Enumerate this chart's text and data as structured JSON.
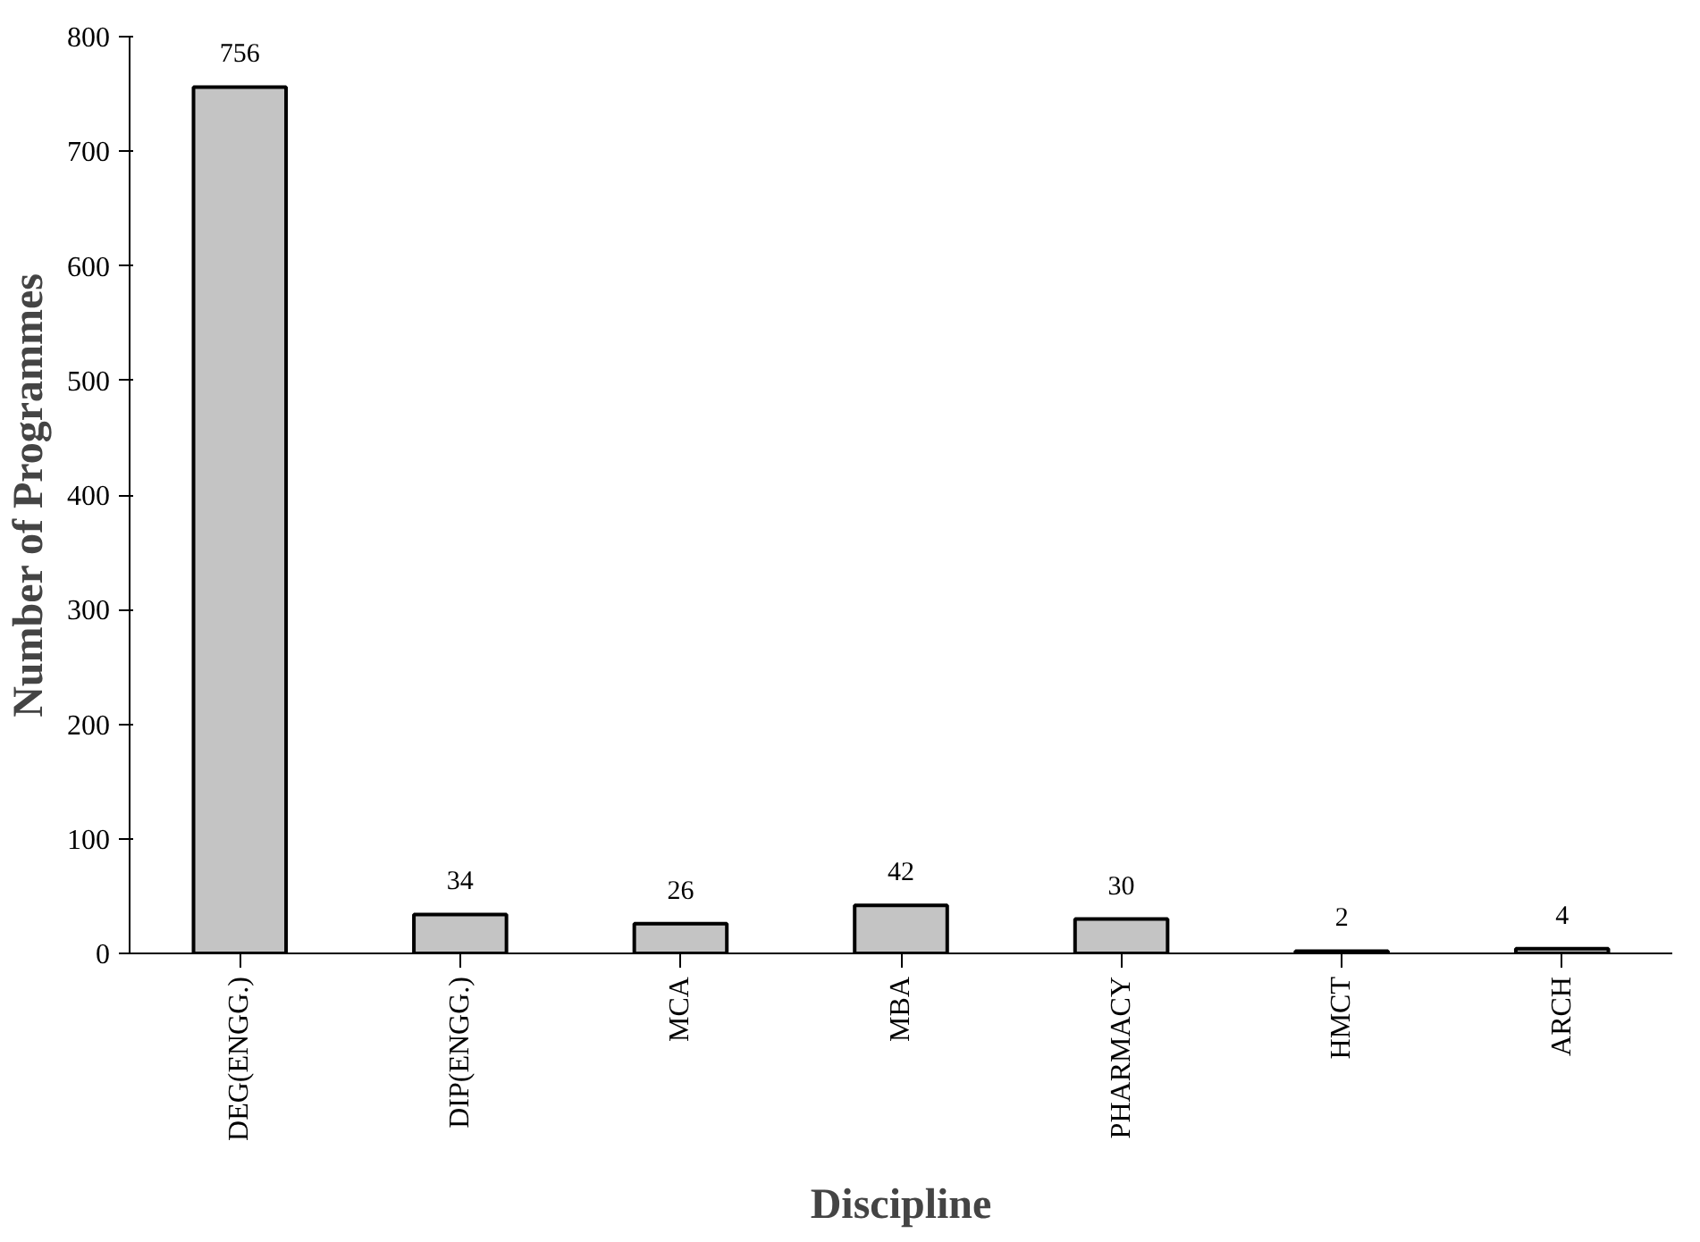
{
  "chart_data": {
    "type": "bar",
    "xlabel": "Discipline",
    "ylabel": "Number of Programmes",
    "categories": [
      "DEG(ENGG.)",
      "DIP(ENGG.)",
      "MCA",
      "MBA",
      "PHARMACY",
      "HMCT",
      "ARCH"
    ],
    "values": [
      756,
      34,
      26,
      42,
      30,
      2,
      4
    ],
    "color": "#c4c4c4",
    "ylim": [
      0,
      800
    ],
    "yticks": [
      0,
      100,
      200,
      300,
      400,
      500,
      600,
      700,
      800
    ],
    "grid": false,
    "data_labels": true
  }
}
